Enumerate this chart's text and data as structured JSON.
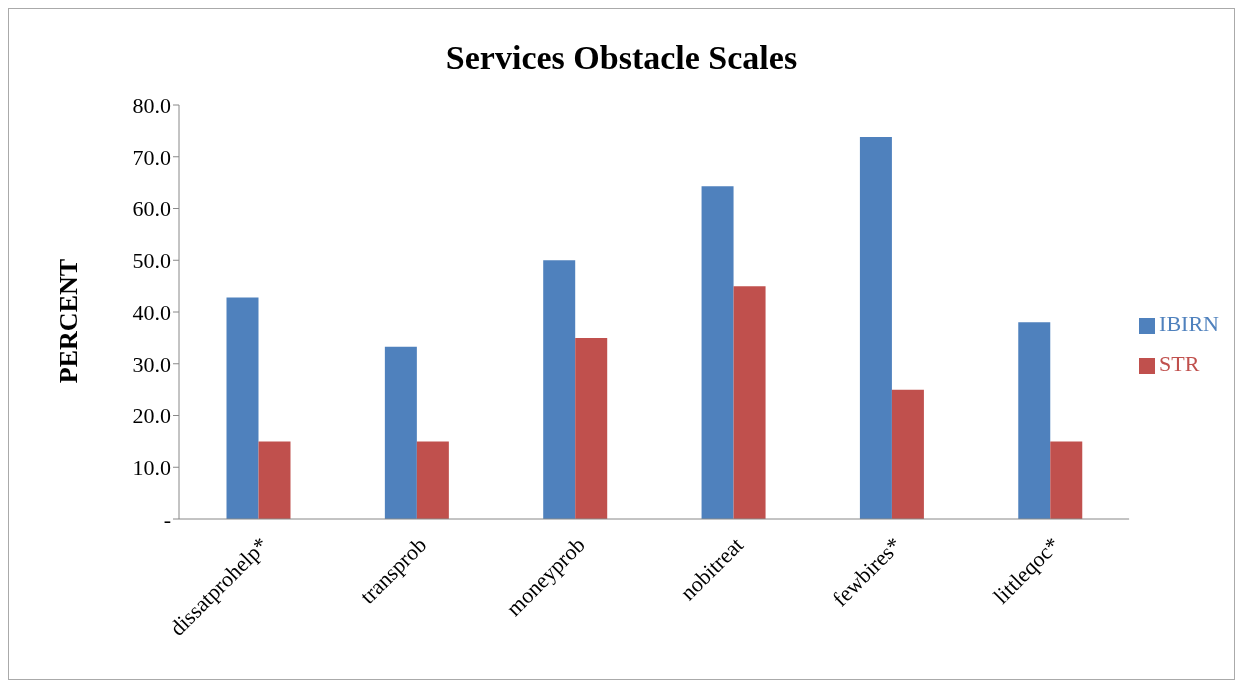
{
  "chart_data": {
    "type": "bar",
    "title": "Services Obstacle Scales",
    "ylabel": "PERCENT",
    "categories": [
      "dissatprohelp*",
      "transprob",
      "moneyprob",
      "nobitreat",
      "fewbires*",
      "littleqoc*"
    ],
    "series": [
      {
        "name": "IBIRN",
        "color": "#4f81bd",
        "values": [
          42.8,
          33.3,
          50.0,
          64.3,
          73.8,
          38.0
        ]
      },
      {
        "name": "STR",
        "color": "#c0504d",
        "values": [
          15.0,
          15.0,
          35.0,
          45.0,
          25.0,
          15.0
        ]
      }
    ],
    "ylim": [
      0,
      80
    ],
    "yticks": [
      {
        "value": 0,
        "label": "-"
      },
      {
        "value": 10,
        "label": "10.0"
      },
      {
        "value": 20,
        "label": "20.0"
      },
      {
        "value": 30,
        "label": "30.0"
      },
      {
        "value": 40,
        "label": "40.0"
      },
      {
        "value": 50,
        "label": "50.0"
      },
      {
        "value": 60,
        "label": "60.0"
      },
      {
        "value": 70,
        "label": "70.0"
      },
      {
        "value": 80,
        "label": "80.0"
      }
    ],
    "grid": false,
    "legend": "right"
  }
}
